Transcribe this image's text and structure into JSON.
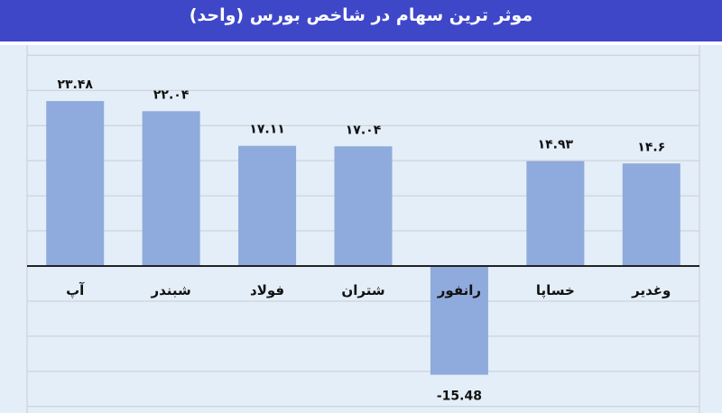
{
  "title": "موثر ترین سهام در شاخص بورس (واحد)",
  "colors": {
    "header": "#3f47c9",
    "background": "#e3eef8",
    "bar": "#8faadc",
    "grid": "#c9ccd2",
    "axis": "#222222"
  },
  "chart_data": {
    "type": "bar",
    "title": "موثر ترین سهام در شاخص بورس (واحد)",
    "xlabel": "",
    "ylabel": "",
    "ylim": [
      -20,
      30
    ],
    "grid": true,
    "categories": [
      "آپ",
      "شبندر",
      "فولاد",
      "شتران",
      "رانفور",
      "خساپا",
      "وغدیر"
    ],
    "values": [
      23.48,
      22.04,
      17.11,
      17.04,
      -15.48,
      14.93,
      14.6
    ],
    "value_labels": [
      "۲۳.۴۸",
      "۲۲.۰۴",
      "۱۷.۱۱",
      "۱۷.۰۴",
      "-15.48",
      "۱۴.۹۳",
      "۱۴.۶"
    ]
  }
}
